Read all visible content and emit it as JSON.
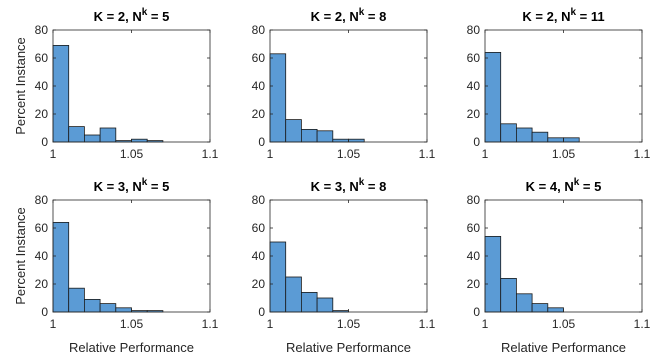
{
  "figure": {
    "ylabel": "Percent Instance",
    "xlabel": "Relative Performance"
  },
  "colors": {
    "bar": "#5b9bd5",
    "edge": "#1a1a1a"
  },
  "chart_data": [
    {
      "type": "bar",
      "title": {
        "base": "K = 2, N",
        "sup": "k",
        "tail": " = 5"
      },
      "bin_edges": [
        1.0,
        1.01,
        1.02,
        1.03,
        1.04,
        1.05,
        1.06,
        1.07
      ],
      "values": [
        69,
        11,
        5,
        10,
        1,
        2,
        1
      ],
      "xlim": [
        1.0,
        1.1
      ],
      "ylim": [
        0,
        80
      ],
      "xticks": [
        "1",
        "1.05",
        "1.1"
      ],
      "yticks": [
        "0",
        "20",
        "40",
        "60",
        "80"
      ],
      "ylabel": "Percent Instance",
      "xlabel": ""
    },
    {
      "type": "bar",
      "title": {
        "base": "K = 2, N",
        "sup": "k",
        "tail": " = 8"
      },
      "bin_edges": [
        1.0,
        1.01,
        1.02,
        1.03,
        1.04,
        1.05,
        1.06
      ],
      "values": [
        63,
        16,
        9,
        8,
        2,
        2
      ],
      "xlim": [
        1.0,
        1.1
      ],
      "ylim": [
        0,
        80
      ],
      "xticks": [
        "1",
        "1.05",
        "1.1"
      ],
      "yticks": [
        "0",
        "20",
        "40",
        "60",
        "80"
      ],
      "ylabel": "",
      "xlabel": ""
    },
    {
      "type": "bar",
      "title": {
        "base": "K = 2, N",
        "sup": "k",
        "tail": " = 11"
      },
      "bin_edges": [
        1.0,
        1.01,
        1.02,
        1.03,
        1.04,
        1.05,
        1.06
      ],
      "values": [
        64,
        13,
        10,
        7,
        3,
        3
      ],
      "xlim": [
        1.0,
        1.1
      ],
      "ylim": [
        0,
        80
      ],
      "xticks": [
        "1",
        "1.05",
        "1.1"
      ],
      "yticks": [
        "0",
        "20",
        "40",
        "60",
        "80"
      ],
      "ylabel": "",
      "xlabel": ""
    },
    {
      "type": "bar",
      "title": {
        "base": "K = 3, N",
        "sup": "k",
        "tail": " = 5"
      },
      "bin_edges": [
        1.0,
        1.01,
        1.02,
        1.03,
        1.04,
        1.05,
        1.06,
        1.07
      ],
      "values": [
        64,
        17,
        9,
        6,
        3,
        1,
        1
      ],
      "xlim": [
        1.0,
        1.1
      ],
      "ylim": [
        0,
        80
      ],
      "xticks": [
        "1",
        "1.05",
        "1.1"
      ],
      "yticks": [
        "0",
        "20",
        "40",
        "60",
        "80"
      ],
      "ylabel": "Percent Instance",
      "xlabel": "Relative Performance"
    },
    {
      "type": "bar",
      "title": {
        "base": "K = 3, N",
        "sup": "k",
        "tail": " = 8"
      },
      "bin_edges": [
        1.0,
        1.01,
        1.02,
        1.03,
        1.04,
        1.05
      ],
      "values": [
        50,
        25,
        14,
        10,
        1
      ],
      "xlim": [
        1.0,
        1.1
      ],
      "ylim": [
        0,
        80
      ],
      "xticks": [
        "1",
        "1.05",
        "1.1"
      ],
      "yticks": [
        "0",
        "20",
        "40",
        "60",
        "80"
      ],
      "ylabel": "",
      "xlabel": "Relative Performance"
    },
    {
      "type": "bar",
      "title": {
        "base": "K = 4, N",
        "sup": "k",
        "tail": " = 5"
      },
      "bin_edges": [
        1.0,
        1.01,
        1.02,
        1.03,
        1.04,
        1.05
      ],
      "values": [
        54,
        24,
        13,
        6,
        3
      ],
      "xlim": [
        1.0,
        1.1
      ],
      "ylim": [
        0,
        80
      ],
      "xticks": [
        "1",
        "1.05",
        "1.1"
      ],
      "yticks": [
        "0",
        "20",
        "40",
        "60",
        "80"
      ],
      "ylabel": "",
      "xlabel": "Relative Performance"
    }
  ]
}
